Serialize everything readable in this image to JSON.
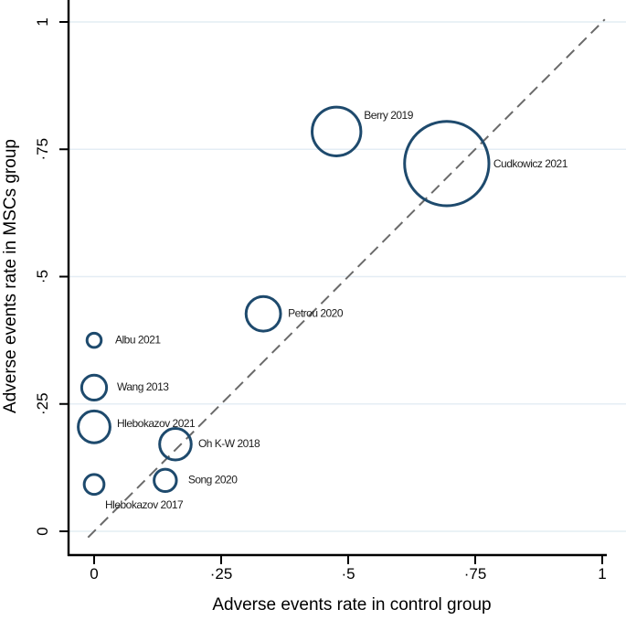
{
  "chart_data": {
    "type": "scatter",
    "subtype": "bubble",
    "title": "",
    "xlabel": "Adverse events rate in control group",
    "ylabel": "Adverse events rate in MSCs group",
    "xlim": [
      -0.05,
      1.05
    ],
    "ylim": [
      -0.047,
      1.043
    ],
    "grid": "horizontal",
    "legend": "none",
    "x_ticks": [
      0,
      0.25,
      0.5,
      0.75,
      1
    ],
    "x_tick_labels": [
      "0",
      "·25",
      "·5",
      "·75",
      "1"
    ],
    "y_ticks": [
      0,
      0.25,
      0.5,
      0.75,
      1
    ],
    "y_tick_labels": [
      "0",
      "·25",
      "·5",
      "·75",
      "1"
    ],
    "identity_line": {
      "style": "dashed",
      "from_xy": [
        -0.012,
        -0.012
      ],
      "to_xy": [
        1.005,
        1.005
      ]
    },
    "points": [
      {
        "label": "Berry 2019",
        "x": 0.477,
        "y": 0.785,
        "radius": 0.048,
        "label_offset": [
          30,
          -17
        ]
      },
      {
        "label": "Cudkowicz 2021",
        "x": 0.694,
        "y": 0.722,
        "radius": 0.083,
        "label_offset": [
          51,
          1
        ]
      },
      {
        "label": "Petrou 2020",
        "x": 0.333,
        "y": 0.427,
        "radius": 0.034,
        "label_offset": [
          27,
          0
        ]
      },
      {
        "label": "Albu 2021",
        "x": 0.0,
        "y": 0.375,
        "radius": 0.014,
        "label_offset": [
          23,
          0
        ]
      },
      {
        "label": "Wang 2013",
        "x": 0.0,
        "y": 0.282,
        "radius": 0.0245,
        "label_offset": [
          25,
          0
        ]
      },
      {
        "label": "Hlebokazov 2021",
        "x": 0.0,
        "y": 0.205,
        "radius": 0.0313,
        "label_offset": [
          25,
          -3
        ]
      },
      {
        "label": "Oh K-W 2018",
        "x": 0.16,
        "y": 0.171,
        "radius": 0.0311,
        "label_offset": [
          25,
          0
        ]
      },
      {
        "label": "Song 2020",
        "x": 0.14,
        "y": 0.1,
        "radius": 0.022,
        "label_offset": [
          25,
          0
        ]
      },
      {
        "label": "Hlebokazov 2017",
        "x": 0.0,
        "y": 0.092,
        "radius": 0.0195,
        "label_offset": [
          12,
          23
        ]
      }
    ],
    "colors": {
      "bubble_stroke": "#1e4a6d",
      "grid_line": "#e4edf4",
      "identity_line": "#6a6a6a",
      "axis": "#000000",
      "text": "#000000",
      "background": "#ffffff"
    }
  }
}
